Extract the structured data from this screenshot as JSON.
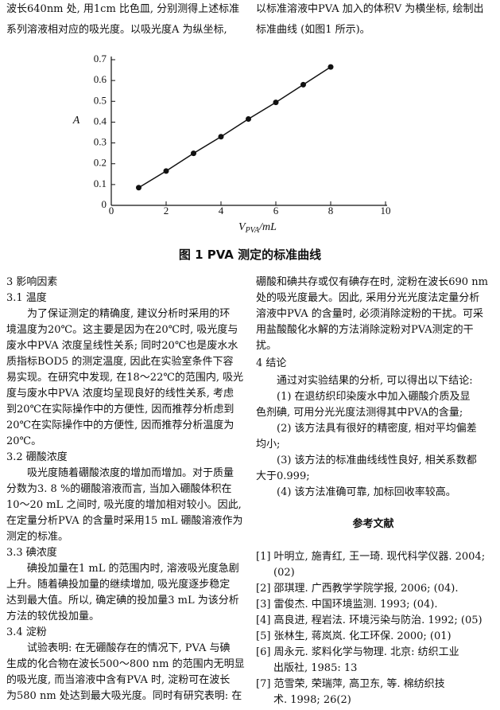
{
  "top": {
    "left": [
      "波长640nm 处, 用1cm 比色皿, 分别测得上述标准",
      "系列溶液相对应的吸光度。以吸光度A 为纵坐标,"
    ],
    "right": [
      "以标准溶液中PVA 加入的体积V 为横坐标, 绘制出",
      "标准曲线 (如图1 所示)。"
    ]
  },
  "chart_data": {
    "type": "line",
    "y_label": "A",
    "x_label": {
      "symbol": "V",
      "subscript": "PVA",
      "unit": "/mL"
    },
    "x": [
      1,
      2,
      3,
      4,
      5,
      6,
      7,
      8
    ],
    "series": [
      {
        "color": "#111111",
        "values": [
          0.085,
          0.165,
          0.25,
          0.33,
          0.415,
          0.495,
          0.58,
          0.665
        ]
      }
    ],
    "xlim": [
      0,
      10
    ],
    "xticks": [
      0,
      2,
      4,
      6,
      8,
      10
    ],
    "ylim": [
      0,
      0.7
    ],
    "yticks": [
      0,
      0.1,
      0.2,
      0.3,
      0.4,
      0.5,
      0.6,
      0.7
    ]
  },
  "caption": "图 1   PVA 测定的标准曲线",
  "body": {
    "left": [
      "3 影响因素",
      "3.1 温度",
      "为了保证测定的精确度, 建议分析时采用的环",
      "境温度为20℃。这主要是因为在20℃时, 吸光度与",
      "废水中PVA 浓度呈线性关系; 同时20℃也是废水水",
      "质指标BOD5 的测定温度, 因此在实验室条件下容",
      "易实现。在研究中发现, 在18～22℃的范围内, 吸光",
      "度与废水中PVA 浓度均呈现良好的线性关系, 考虑",
      "到20℃在实际操作中的方便性, 因而推荐分析虑到",
      "20℃在实际操作中的方便性, 因而推荐分析温度为",
      "20℃。",
      "3.2 硼酸浓度",
      "吸光度随着硼酸浓度的增加而增加。对于质量",
      "分数为3. 8 %的硼酸溶液而言, 当加入硼酸体积在",
      "10～20 mL 之间时, 吸光度的增加相对较小。因此,",
      "在定量分析PVA 的含量时采用15 mL 硼酸溶液作为",
      "测定的标准。",
      "3.3 碘浓度",
      "碘投加量在1 mL 的范围内时, 溶液吸光度急剧",
      "上升。随着碘投加量的继续增加, 吸光度逐步稳定",
      "达到最大值。所以, 确定碘的投加量3 mL 为该分析",
      "方法的较优投加量。",
      "3.4 淀粉",
      "试验表明: 在无硼酸存在的情况下, PVA 与碘",
      "生成的化合物在波长500～800 nm 的范围内无明显",
      "的吸光度, 而当溶液中含有PVA 时, 淀粉可在波长",
      "为580 nm 处达到最大吸光度。同时有研究表明: 在"
    ],
    "right": [
      "硼酸和碘共存或仅有碘存在时, 淀粉在波长690 nm",
      "处的吸光度最大。因此, 采用分光光度法定量分析",
      "溶液中PVA 的含量时, 必须消除淀粉的干扰。可采",
      "用盐酸酸化水解的方法消除淀粉对PVA测定的干",
      "扰。",
      "4 结论",
      "通过对实验结果的分析, 可以得出以下结论:",
      "(1) 在退纺织印染废水中加入硼酸介质及显",
      "色剂碘, 可用分光光度法测得其中PVA的含量;",
      "(2) 该方法具有很好的精密度, 相对平均偏差",
      "均小;",
      "(3) 该方法的标准曲线线性良好, 相关系数都",
      "大于0.999;",
      "(4) 该方法准确可靠, 加标回收率较高。"
    ]
  },
  "references": {
    "title": "参考文献",
    "lines": [
      "[1] 叶明立, 施青红, 王一琦. 现代科学仪器. 2004;",
      "(02)",
      "[2] 邵琪理. 广西教学学院学报, 2006; (04).",
      "[3] 雷俊杰. 中国环境监测. 1993; (04).",
      "[4] 高良进, 程岩法. 环境污染与防治. 1992; (05)",
      "[5] 张林生, 蒋岚岚. 化工环保. 2000; (01)",
      "[6] 周永元. 浆料化学与物理. 北京: 纺织工业",
      "出版社, 1985: 13",
      "[7] 范雪荣, 荣瑞萍, 高卫东, 等. 棉纺织技",
      "术. 1998; 26(2)"
    ]
  }
}
